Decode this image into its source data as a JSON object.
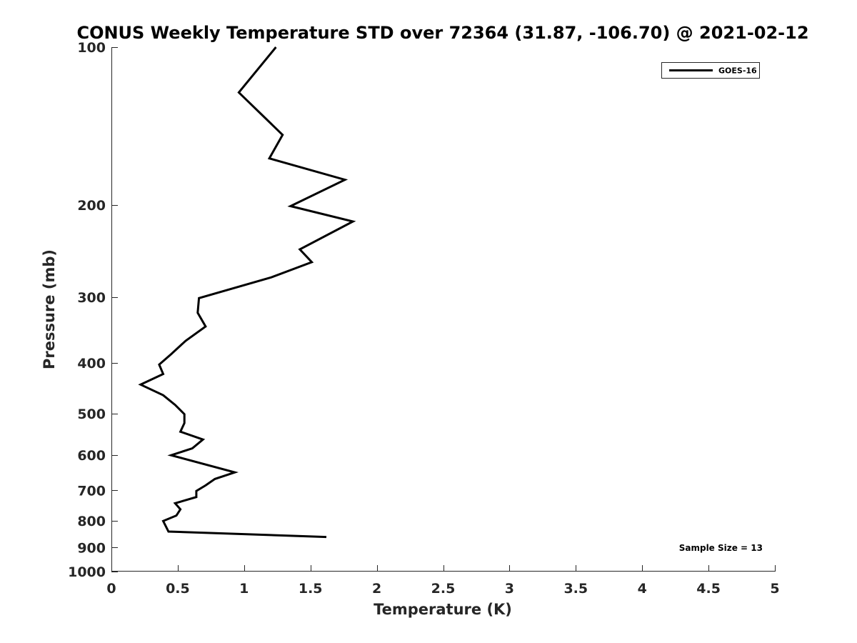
{
  "chart_data": {
    "type": "line",
    "title": "CONUS Weekly Temperature STD over 72364 (31.87, -106.70) @ 2021-02-12",
    "xlabel": "Temperature (K)",
    "ylabel": "Pressure (mb)",
    "xlim": [
      0,
      5
    ],
    "ylim": [
      100,
      1000
    ],
    "yscale": "log",
    "yreversed": true,
    "grid": false,
    "legend_position": "top-right",
    "x_ticks": [
      0,
      0.5,
      1,
      1.5,
      2,
      2.5,
      3,
      3.5,
      4,
      4.5,
      5
    ],
    "x_tick_labels": [
      "0",
      "0.5",
      "1",
      "1.5",
      "2",
      "2.5",
      "3",
      "3.5",
      "4",
      "4.5",
      "5"
    ],
    "y_ticks": [
      100,
      200,
      300,
      400,
      500,
      600,
      700,
      800,
      900,
      1000
    ],
    "y_tick_labels": [
      "100",
      "200",
      "300",
      "400",
      "500",
      "600",
      "700",
      "800",
      "900",
      "1000"
    ],
    "series": [
      {
        "name": "GOES-16",
        "color": "#000000",
        "points": [
          {
            "x": 1.24,
            "p": 100
          },
          {
            "x": 0.96,
            "p": 122
          },
          {
            "x": 1.29,
            "p": 147
          },
          {
            "x": 1.19,
            "p": 163
          },
          {
            "x": 1.76,
            "p": 179
          },
          {
            "x": 1.35,
            "p": 201
          },
          {
            "x": 1.82,
            "p": 215
          },
          {
            "x": 1.42,
            "p": 243
          },
          {
            "x": 1.51,
            "p": 257
          },
          {
            "x": 1.2,
            "p": 275
          },
          {
            "x": 0.66,
            "p": 301
          },
          {
            "x": 0.65,
            "p": 321
          },
          {
            "x": 0.71,
            "p": 341
          },
          {
            "x": 0.56,
            "p": 363
          },
          {
            "x": 0.45,
            "p": 385
          },
          {
            "x": 0.36,
            "p": 403
          },
          {
            "x": 0.39,
            "p": 420
          },
          {
            "x": 0.22,
            "p": 440
          },
          {
            "x": 0.39,
            "p": 461
          },
          {
            "x": 0.48,
            "p": 481
          },
          {
            "x": 0.55,
            "p": 501
          },
          {
            "x": 0.55,
            "p": 521
          },
          {
            "x": 0.52,
            "p": 541
          },
          {
            "x": 0.69,
            "p": 560
          },
          {
            "x": 0.61,
            "p": 582
          },
          {
            "x": 0.45,
            "p": 600
          },
          {
            "x": 0.93,
            "p": 647
          },
          {
            "x": 0.78,
            "p": 666
          },
          {
            "x": 0.71,
            "p": 685
          },
          {
            "x": 0.64,
            "p": 702
          },
          {
            "x": 0.64,
            "p": 721
          },
          {
            "x": 0.48,
            "p": 741
          },
          {
            "x": 0.52,
            "p": 761
          },
          {
            "x": 0.49,
            "p": 782
          },
          {
            "x": 0.39,
            "p": 801
          },
          {
            "x": 0.43,
            "p": 839
          },
          {
            "x": 1.62,
            "p": 859
          }
        ]
      }
    ],
    "annotations": [
      {
        "text": "Sample Size = 13",
        "position": "bottom-right"
      }
    ]
  }
}
